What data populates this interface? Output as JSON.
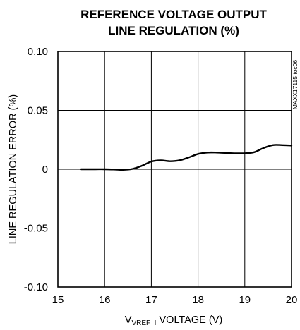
{
  "chart_data": {
    "type": "line",
    "title": "REFERENCE VOLTAGE OUTPUT",
    "subtitle": "LINE REGULATION (%)",
    "xlabel": {
      "prefix": "V",
      "subscript": "VREF_I",
      "suffix": " VOLTAGE (V)"
    },
    "ylabel": "LINE REGULATION ERROR (%)",
    "side_note": "MAXX17115 toc06",
    "xlim": [
      15,
      20
    ],
    "ylim": [
      -0.1,
      0.1
    ],
    "x_ticks": [
      {
        "value": 15,
        "label": "15"
      },
      {
        "value": 16,
        "label": "16"
      },
      {
        "value": 17,
        "label": "17"
      },
      {
        "value": 18,
        "label": "18"
      },
      {
        "value": 19,
        "label": "19"
      },
      {
        "value": 20,
        "label": "20"
      }
    ],
    "y_ticks": [
      {
        "value": 0.1,
        "label": "0.10"
      },
      {
        "value": 0.05,
        "label": "0.05"
      },
      {
        "value": 0,
        "label": "0"
      },
      {
        "value": -0.05,
        "label": "-0.05"
      },
      {
        "value": -0.1,
        "label": "-0.10"
      }
    ],
    "grid": true,
    "series": [
      {
        "color": "#000000",
        "x": [
          15.5,
          15.8,
          16.0,
          16.2,
          16.4,
          16.6,
          16.8,
          17.0,
          17.2,
          17.4,
          17.6,
          17.8,
          18.0,
          18.2,
          18.4,
          18.6,
          18.8,
          19.0,
          19.2,
          19.4,
          19.6,
          19.8,
          20.0
        ],
        "y": [
          0.0,
          0.0,
          0.0,
          -0.0002,
          -0.0005,
          0.0003,
          0.003,
          0.0065,
          0.0075,
          0.0068,
          0.0075,
          0.01,
          0.013,
          0.0142,
          0.0142,
          0.0138,
          0.0135,
          0.0136,
          0.0145,
          0.018,
          0.0205,
          0.0205,
          0.0202
        ]
      }
    ]
  }
}
